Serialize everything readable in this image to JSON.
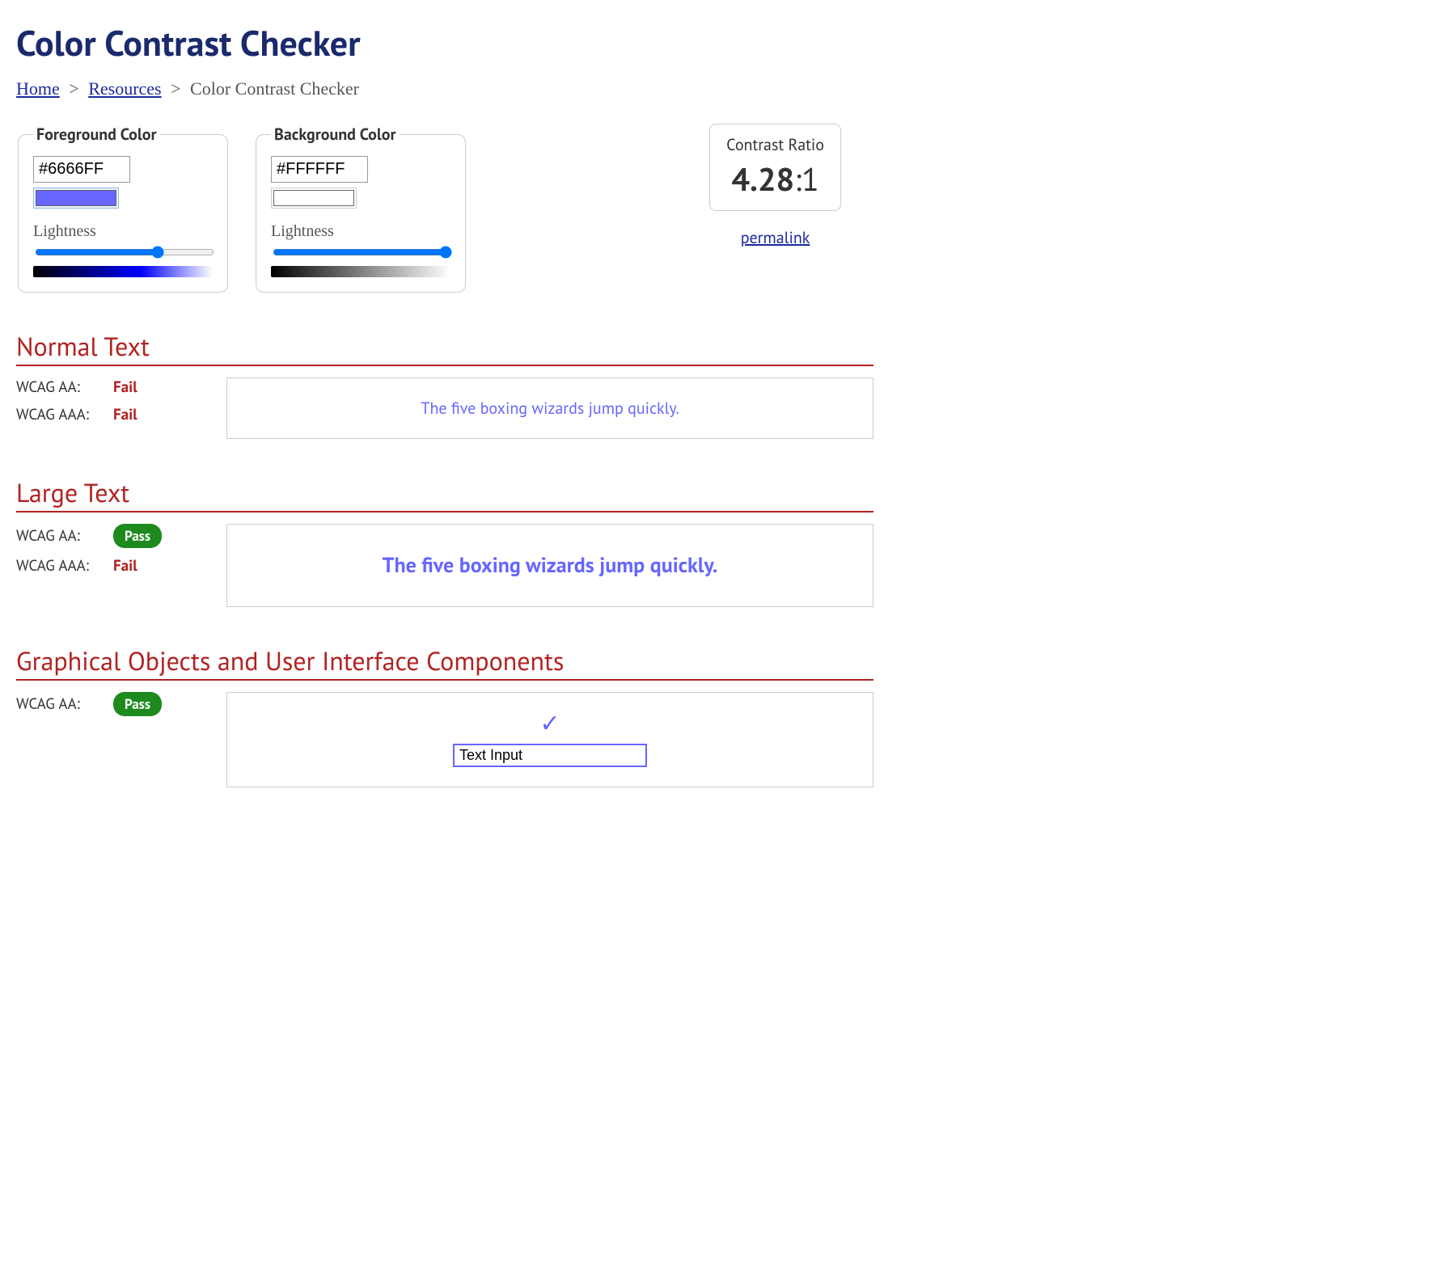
{
  "title": "Color Contrast Checker",
  "breadcrumb": {
    "home": "Home",
    "resources": "Resources",
    "current": "Color Contrast Checker"
  },
  "colors": {
    "foreground": {
      "legend": "Foreground Color",
      "value": "#6666FF",
      "swatch": "#6666FF",
      "lightness_label": "Lightness",
      "slider_value": 70,
      "gradient_css": "linear-gradient(to right, #000000, #0000ff 60%, #ffffff)"
    },
    "background": {
      "legend": "Background Color",
      "value": "#FFFFFF",
      "swatch": "#FFFFFF",
      "lightness_label": "Lightness",
      "slider_value": 100,
      "gradient_css": "linear-gradient(to right, #000000, #ffffff)"
    }
  },
  "ratio": {
    "label": "Contrast Ratio",
    "value": "4.28",
    "suffix": ":1",
    "permalink": "permalink"
  },
  "sections": {
    "normal": {
      "heading": "Normal Text",
      "aa_label": "WCAG AA:",
      "aa_result": "Fail",
      "aa_pass": false,
      "aaa_label": "WCAG AAA:",
      "aaa_result": "Fail",
      "aaa_pass": false,
      "sample": "The five boxing wizards jump quickly."
    },
    "large": {
      "heading": "Large Text",
      "aa_label": "WCAG AA:",
      "aa_result": "Pass",
      "aa_pass": true,
      "aaa_label": "WCAG AAA:",
      "aaa_result": "Fail",
      "aaa_pass": false,
      "sample": "The five boxing wizards jump quickly."
    },
    "gui": {
      "heading": "Graphical Objects and User Interface Components",
      "aa_label": "WCAG AA:",
      "aa_result": "Pass",
      "aa_pass": true,
      "input_demo": "Text Input"
    }
  },
  "style": {
    "heading_color": "#1a2a6c",
    "section_color": "#b22222",
    "link_color": "#1a2a9c",
    "pass_bg": "#1e8a1e",
    "fail_color": "#b22222"
  }
}
